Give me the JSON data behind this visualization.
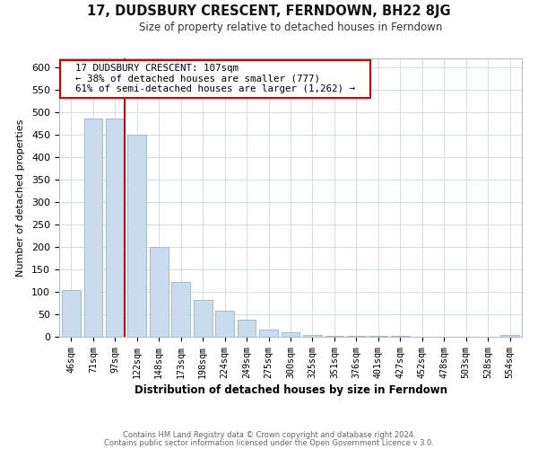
{
  "title": "17, DUDSBURY CRESCENT, FERNDOWN, BH22 8JG",
  "subtitle": "Size of property relative to detached houses in Ferndown",
  "xlabel": "Distribution of detached houses by size in Ferndown",
  "ylabel": "Number of detached properties",
  "footnote1": "Contains HM Land Registry data © Crown copyright and database right 2024.",
  "footnote2": "Contains public sector information licensed under the Open Government Licence v 3.0.",
  "bar_labels": [
    "46sqm",
    "71sqm",
    "97sqm",
    "122sqm",
    "148sqm",
    "173sqm",
    "198sqm",
    "224sqm",
    "249sqm",
    "275sqm",
    "300sqm",
    "325sqm",
    "351sqm",
    "376sqm",
    "401sqm",
    "427sqm",
    "452sqm",
    "478sqm",
    "503sqm",
    "528sqm",
    "554sqm"
  ],
  "bar_values": [
    105,
    487,
    487,
    450,
    200,
    122,
    82,
    58,
    38,
    17,
    10,
    5,
    2,
    2,
    2,
    2,
    1,
    1,
    1,
    1,
    5
  ],
  "bar_color": "#c8dced",
  "bar_edge_color": "#9bbdd4",
  "property_line_color": "#cc0000",
  "annotation_title": "17 DUDSBURY CRESCENT: 107sqm",
  "annotation_line1": "← 38% of detached houses are smaller (777)",
  "annotation_line2": "61% of semi-detached houses are larger (1,262) →",
  "annotation_box_color": "#ffffff",
  "annotation_box_edge": "#cc0000",
  "grid_color": "#d0dce8",
  "ylim": [
    0,
    620
  ],
  "yticks": [
    0,
    50,
    100,
    150,
    200,
    250,
    300,
    350,
    400,
    450,
    500,
    550,
    600
  ],
  "bg_color": "#ffffff",
  "plot_bg_color": "#ffffff"
}
